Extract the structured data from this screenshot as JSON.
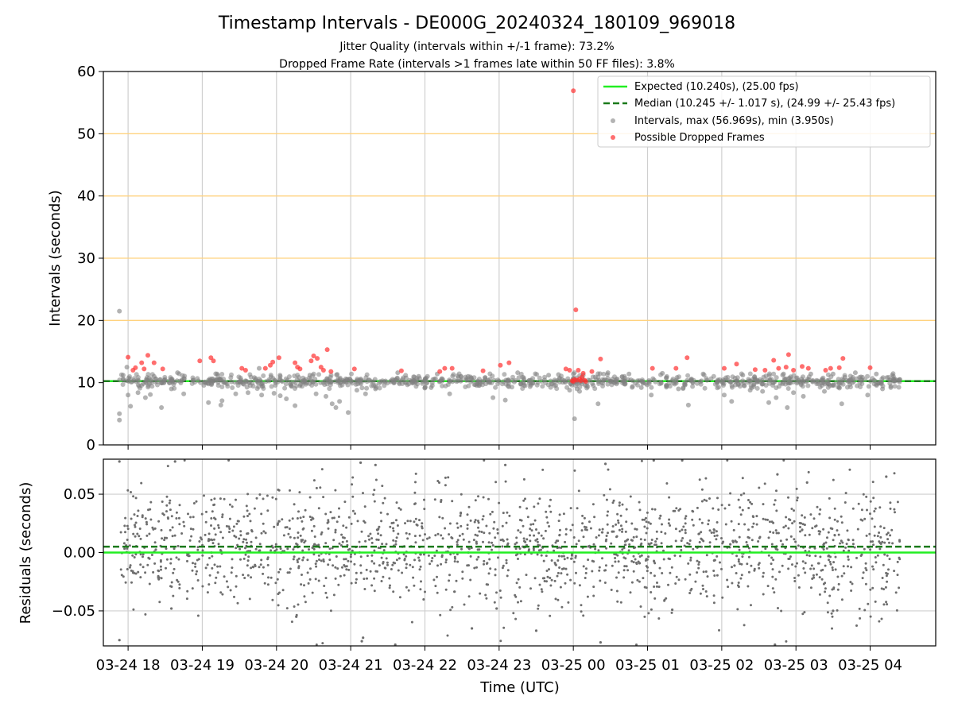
{
  "chart_data": {
    "type": "scatter",
    "title": "Timestamp Intervals - DE000G_20240324_180109_969018",
    "subtitle_lines": [
      "Jitter Quality (intervals within +/-1 frame): 73.2%",
      "Dropped Frame Rate (intervals >1 frames late within 50 FF files): 3.8%"
    ],
    "xlabel": "Time (UTC)",
    "x_range": [
      "2024-03-24 17:40",
      "2024-03-25 04:53"
    ],
    "x_ticks": [
      {
        "time": "2024-03-24 18:00",
        "label": "03-24 18"
      },
      {
        "time": "2024-03-24 19:00",
        "label": "03-24 19"
      },
      {
        "time": "2024-03-24 20:00",
        "label": "03-24 20"
      },
      {
        "time": "2024-03-24 21:00",
        "label": "03-24 21"
      },
      {
        "time": "2024-03-24 22:00",
        "label": "03-24 22"
      },
      {
        "time": "2024-03-24 23:00",
        "label": "03-24 23"
      },
      {
        "time": "2024-03-25 00:00",
        "label": "03-25 00"
      },
      {
        "time": "2024-03-25 01:00",
        "label": "03-25 01"
      },
      {
        "time": "2024-03-25 02:00",
        "label": "03-25 02"
      },
      {
        "time": "2024-03-25 03:00",
        "label": "03-25 03"
      },
      {
        "time": "2024-03-25 04:00",
        "label": "03-25 04"
      }
    ],
    "top_panel": {
      "ylabel": "Intervals (seconds)",
      "ylim": [
        0,
        60
      ],
      "yticks": [
        "0",
        "10",
        "20",
        "30",
        "40",
        "50",
        "60"
      ],
      "horizontal_gridlines": [
        20,
        30,
        40,
        50
      ],
      "gridline_color": "#ffd27f",
      "vertical_grid": true,
      "expected_interval": 10.24,
      "median_interval": 10.245,
      "legend_position": "upper right",
      "legend": [
        {
          "label": "Expected (10.240s), (25.00 fps)",
          "kind": "solid-line",
          "color": "#22ee22"
        },
        {
          "label": "Median (10.245 +/- 1.017 s), (24.99 +/- 25.43 fps)",
          "kind": "dashed-line",
          "color": "#1a7a1a"
        },
        {
          "label": "Intervals, max (56.969s), min (3.950s)",
          "kind": "point",
          "color": "#808080"
        },
        {
          "label": "Possible Dropped Frames",
          "kind": "point",
          "color": "#ff3030"
        }
      ],
      "interval_points": [
        {
          "time": "2024-03-24 17:53",
          "y": 21.5
        },
        {
          "time": "2024-03-24 17:53",
          "y": 5.0
        },
        {
          "time": "2024-03-24 17:53",
          "y": 4.0
        },
        {
          "time": "2024-03-24 17:56",
          "y": 11.2
        },
        {
          "time": "2024-03-24 17:59",
          "y": 12.5
        },
        {
          "time": "2024-03-24 18:00",
          "y": 8.0
        },
        {
          "time": "2024-03-24 18:02",
          "y": 6.2
        },
        {
          "time": "2024-03-24 18:08",
          "y": 8.4
        },
        {
          "time": "2024-03-24 18:14",
          "y": 7.6
        },
        {
          "time": "2024-03-24 18:18",
          "y": 8.1
        },
        {
          "time": "2024-03-24 18:21",
          "y": 11.0
        },
        {
          "time": "2024-03-24 18:27",
          "y": 6.0
        },
        {
          "time": "2024-03-24 18:35",
          "y": 9.0
        },
        {
          "time": "2024-03-24 18:40",
          "y": 11.6
        },
        {
          "time": "2024-03-24 18:45",
          "y": 8.2
        },
        {
          "time": "2024-03-24 19:05",
          "y": 6.8
        },
        {
          "time": "2024-03-24 19:12",
          "y": 11.4
        },
        {
          "time": "2024-03-24 19:15",
          "y": 6.4
        },
        {
          "time": "2024-03-24 19:16",
          "y": 7.1
        },
        {
          "time": "2024-03-24 19:27",
          "y": 8.2
        },
        {
          "time": "2024-03-24 19:37",
          "y": 8.4
        },
        {
          "time": "2024-03-24 19:46",
          "y": 12.3
        },
        {
          "time": "2024-03-24 19:48",
          "y": 8.0
        },
        {
          "time": "2024-03-24 19:58",
          "y": 8.3
        },
        {
          "time": "2024-03-24 20:03",
          "y": 7.9
        },
        {
          "time": "2024-03-24 20:08",
          "y": 7.4
        },
        {
          "time": "2024-03-24 20:15",
          "y": 6.3
        },
        {
          "time": "2024-03-24 20:27",
          "y": 11.2
        },
        {
          "time": "2024-03-24 20:32",
          "y": 8.2
        },
        {
          "time": "2024-03-24 20:40",
          "y": 7.8
        },
        {
          "time": "2024-03-24 20:45",
          "y": 6.6
        },
        {
          "time": "2024-03-24 20:48",
          "y": 6.0
        },
        {
          "time": "2024-03-24 20:51",
          "y": 7.0
        },
        {
          "time": "2024-03-24 20:58",
          "y": 5.2
        },
        {
          "time": "2024-03-24 21:05",
          "y": 8.8
        },
        {
          "time": "2024-03-24 21:12",
          "y": 8.2
        },
        {
          "time": "2024-03-24 21:20",
          "y": 9.0
        },
        {
          "time": "2024-03-24 21:38",
          "y": 11.6
        },
        {
          "time": "2024-03-24 21:55",
          "y": 11.0
        },
        {
          "time": "2024-03-24 22:05",
          "y": 9.2
        },
        {
          "time": "2024-03-24 22:10",
          "y": 11.4
        },
        {
          "time": "2024-03-24 22:20",
          "y": 8.2
        },
        {
          "time": "2024-03-24 22:35",
          "y": 11.0
        },
        {
          "time": "2024-03-24 22:55",
          "y": 7.6
        },
        {
          "time": "2024-03-24 23:05",
          "y": 7.2
        },
        {
          "time": "2024-03-24 23:15",
          "y": 11.6
        },
        {
          "time": "2024-03-24 23:40",
          "y": 11.2
        },
        {
          "time": "2024-03-24 23:48",
          "y": 11.3
        },
        {
          "time": "2024-03-24 23:57",
          "y": 8.8
        },
        {
          "time": "2024-03-25 00:00",
          "y": 11.4
        },
        {
          "time": "2024-03-25 00:01",
          "y": 4.2
        },
        {
          "time": "2024-03-25 00:03",
          "y": 9.0
        },
        {
          "time": "2024-03-25 00:05",
          "y": 8.6
        },
        {
          "time": "2024-03-25 00:08",
          "y": 11.2
        },
        {
          "time": "2024-03-25 00:20",
          "y": 6.6
        },
        {
          "time": "2024-03-25 00:28",
          "y": 11.6
        },
        {
          "time": "2024-03-25 00:45",
          "y": 11.4
        },
        {
          "time": "2024-03-25 00:55",
          "y": 9.2
        },
        {
          "time": "2024-03-25 01:03",
          "y": 8.0
        },
        {
          "time": "2024-03-25 01:12",
          "y": 11.5
        },
        {
          "time": "2024-03-25 01:25",
          "y": 9.0
        },
        {
          "time": "2024-03-25 01:33",
          "y": 6.4
        },
        {
          "time": "2024-03-25 01:45",
          "y": 11.4
        },
        {
          "time": "2024-03-25 02:02",
          "y": 8.0
        },
        {
          "time": "2024-03-25 02:08",
          "y": 7.0
        },
        {
          "time": "2024-03-25 02:17",
          "y": 11.2
        },
        {
          "time": "2024-03-25 02:23",
          "y": 8.8
        },
        {
          "time": "2024-03-25 02:33",
          "y": 8.6
        },
        {
          "time": "2024-03-25 02:38",
          "y": 6.8
        },
        {
          "time": "2024-03-25 02:44",
          "y": 7.6
        },
        {
          "time": "2024-03-25 02:50",
          "y": 11.4
        },
        {
          "time": "2024-03-25 02:53",
          "y": 6.0
        },
        {
          "time": "2024-03-25 02:58",
          "y": 8.4
        },
        {
          "time": "2024-03-25 03:06",
          "y": 7.8
        },
        {
          "time": "2024-03-25 03:12",
          "y": 11.4
        },
        {
          "time": "2024-03-25 03:23",
          "y": 8.6
        },
        {
          "time": "2024-03-25 03:30",
          "y": 11.4
        },
        {
          "time": "2024-03-25 03:37",
          "y": 6.6
        },
        {
          "time": "2024-03-25 03:48",
          "y": 11.6
        },
        {
          "time": "2024-03-25 03:58",
          "y": 8.0
        },
        {
          "time": "2024-03-25 04:05",
          "y": 11.4
        },
        {
          "time": "2024-03-25 04:10",
          "y": 9.0
        },
        {
          "time": "2024-03-25 04:18",
          "y": 11.2
        },
        {
          "time": "2024-03-25 04:24",
          "y": 10.5
        }
      ],
      "dropped_points": [
        {
          "time": "2024-03-24 18:00",
          "y": 14.1
        },
        {
          "time": "2024-03-24 18:04",
          "y": 12.0
        },
        {
          "time": "2024-03-24 18:06",
          "y": 12.4
        },
        {
          "time": "2024-03-24 18:11",
          "y": 13.2
        },
        {
          "time": "2024-03-24 18:13",
          "y": 12.2
        },
        {
          "time": "2024-03-24 18:16",
          "y": 14.4
        },
        {
          "time": "2024-03-24 18:21",
          "y": 13.2
        },
        {
          "time": "2024-03-24 18:28",
          "y": 12.2
        },
        {
          "time": "2024-03-24 18:58",
          "y": 13.5
        },
        {
          "time": "2024-03-24 19:07",
          "y": 14.0
        },
        {
          "time": "2024-03-24 19:09",
          "y": 13.5
        },
        {
          "time": "2024-03-24 19:32",
          "y": 12.3
        },
        {
          "time": "2024-03-24 19:35",
          "y": 12.0
        },
        {
          "time": "2024-03-24 19:51",
          "y": 12.3
        },
        {
          "time": "2024-03-24 19:55",
          "y": 12.8
        },
        {
          "time": "2024-03-24 19:57",
          "y": 13.3
        },
        {
          "time": "2024-03-24 20:02",
          "y": 14.0
        },
        {
          "time": "2024-03-24 20:15",
          "y": 13.2
        },
        {
          "time": "2024-03-24 20:17",
          "y": 12.5
        },
        {
          "time": "2024-03-24 20:19",
          "y": 12.2
        },
        {
          "time": "2024-03-24 20:28",
          "y": 13.5
        },
        {
          "time": "2024-03-24 20:30",
          "y": 14.3
        },
        {
          "time": "2024-03-24 20:33",
          "y": 13.9
        },
        {
          "time": "2024-03-24 20:36",
          "y": 12.5
        },
        {
          "time": "2024-03-24 20:38",
          "y": 12.0
        },
        {
          "time": "2024-03-24 20:41",
          "y": 15.3
        },
        {
          "time": "2024-03-24 20:44",
          "y": 11.8
        },
        {
          "time": "2024-03-24 21:03",
          "y": 12.2
        },
        {
          "time": "2024-03-24 21:41",
          "y": 11.9
        },
        {
          "time": "2024-03-24 22:12",
          "y": 11.8
        },
        {
          "time": "2024-03-24 22:16",
          "y": 12.3
        },
        {
          "time": "2024-03-24 22:22",
          "y": 12.3
        },
        {
          "time": "2024-03-24 22:47",
          "y": 11.9
        },
        {
          "time": "2024-03-24 23:01",
          "y": 12.8
        },
        {
          "time": "2024-03-24 23:08",
          "y": 13.2
        },
        {
          "time": "2024-03-24 23:54",
          "y": 12.2
        },
        {
          "time": "2024-03-24 23:57",
          "y": 12.0
        },
        {
          "time": "2024-03-24 23:59",
          "y": 10.3
        },
        {
          "time": "2024-03-25 00:00",
          "y": 56.9
        },
        {
          "time": "2024-03-25 00:00",
          "y": 10.2
        },
        {
          "time": "2024-03-25 00:01",
          "y": 10.5
        },
        {
          "time": "2024-03-25 00:02",
          "y": 21.7
        },
        {
          "time": "2024-03-25 00:03",
          "y": 10.4
        },
        {
          "time": "2024-03-25 00:04",
          "y": 12.0
        },
        {
          "time": "2024-03-25 00:05",
          "y": 10.6
        },
        {
          "time": "2024-03-25 00:06",
          "y": 10.3
        },
        {
          "time": "2024-03-25 00:07",
          "y": 10.9
        },
        {
          "time": "2024-03-25 00:08",
          "y": 11.5
        },
        {
          "time": "2024-03-25 00:09",
          "y": 10.4
        },
        {
          "time": "2024-03-25 00:10",
          "y": 10.2
        },
        {
          "time": "2024-03-25 00:15",
          "y": 11.8
        },
        {
          "time": "2024-03-25 00:22",
          "y": 13.8
        },
        {
          "time": "2024-03-25 01:04",
          "y": 12.3
        },
        {
          "time": "2024-03-25 01:23",
          "y": 12.3
        },
        {
          "time": "2024-03-25 01:32",
          "y": 14.0
        },
        {
          "time": "2024-03-25 02:02",
          "y": 12.3
        },
        {
          "time": "2024-03-25 02:12",
          "y": 13.0
        },
        {
          "time": "2024-03-25 02:27",
          "y": 12.1
        },
        {
          "time": "2024-03-25 02:35",
          "y": 12.0
        },
        {
          "time": "2024-03-25 02:42",
          "y": 13.6
        },
        {
          "time": "2024-03-25 02:46",
          "y": 12.3
        },
        {
          "time": "2024-03-25 02:52",
          "y": 12.5
        },
        {
          "time": "2024-03-25 02:54",
          "y": 14.5
        },
        {
          "time": "2024-03-25 02:58",
          "y": 12.0
        },
        {
          "time": "2024-03-25 03:05",
          "y": 12.6
        },
        {
          "time": "2024-03-25 03:10",
          "y": 12.3
        },
        {
          "time": "2024-03-25 03:24",
          "y": 12.0
        },
        {
          "time": "2024-03-25 03:28",
          "y": 12.3
        },
        {
          "time": "2024-03-25 03:35",
          "y": 12.4
        },
        {
          "time": "2024-03-25 03:38",
          "y": 13.9
        },
        {
          "time": "2024-03-25 04:00",
          "y": 12.4
        }
      ]
    },
    "bottom_panel": {
      "ylabel": "Residuals (seconds)",
      "ylim": [
        -0.08,
        0.08
      ],
      "yticks": [
        {
          "value": 0.05,
          "label": "0.05"
        },
        {
          "value": 0.0,
          "label": "0.00"
        },
        {
          "value": -0.05,
          "label": "−0.05"
        }
      ],
      "grid": true,
      "expected_line": 0.0,
      "median_line": 0.005,
      "residual_spread": 0.025,
      "residual_count": 1800,
      "outlier_points": [
        {
          "time": "2024-03-24 17:53",
          "y": 0.078
        },
        {
          "time": "2024-03-24 17:53",
          "y": -0.075
        },
        {
          "time": "2024-03-24 18:38",
          "y": 0.078
        },
        {
          "time": "2024-03-24 18:35",
          "y": -0.048
        },
        {
          "time": "2024-03-24 21:08",
          "y": 0.077
        },
        {
          "time": "2024-03-24 21:20",
          "y": 0.075
        },
        {
          "time": "2024-03-24 21:10",
          "y": -0.073
        },
        {
          "time": "2024-03-24 21:09",
          "y": -0.076
        },
        {
          "time": "2024-03-24 21:36",
          "y": -0.079
        },
        {
          "time": "2024-03-24 22:38",
          "y": -0.065
        },
        {
          "time": "2024-03-24 23:05",
          "y": 0.075
        },
        {
          "time": "2024-03-24 23:30",
          "y": -0.067
        },
        {
          "time": "2024-03-25 00:26",
          "y": 0.076
        },
        {
          "time": "2024-03-25 00:22",
          "y": -0.077
        },
        {
          "time": "2024-03-25 01:05",
          "y": 0.079
        },
        {
          "time": "2024-03-25 01:28",
          "y": 0.079
        },
        {
          "time": "2024-03-25 02:45",
          "y": 0.067
        },
        {
          "time": "2024-03-25 02:43",
          "y": -0.079
        },
        {
          "time": "2024-03-25 03:09",
          "y": 0.06
        },
        {
          "time": "2024-03-25 03:30",
          "y": -0.05
        },
        {
          "time": "2024-03-25 04:13",
          "y": 0.065
        },
        {
          "time": "2024-03-25 01:20",
          "y": -0.049
        },
        {
          "time": "2024-03-24 20:16",
          "y": -0.055
        },
        {
          "time": "2024-03-24 22:58",
          "y": -0.048
        }
      ]
    }
  }
}
